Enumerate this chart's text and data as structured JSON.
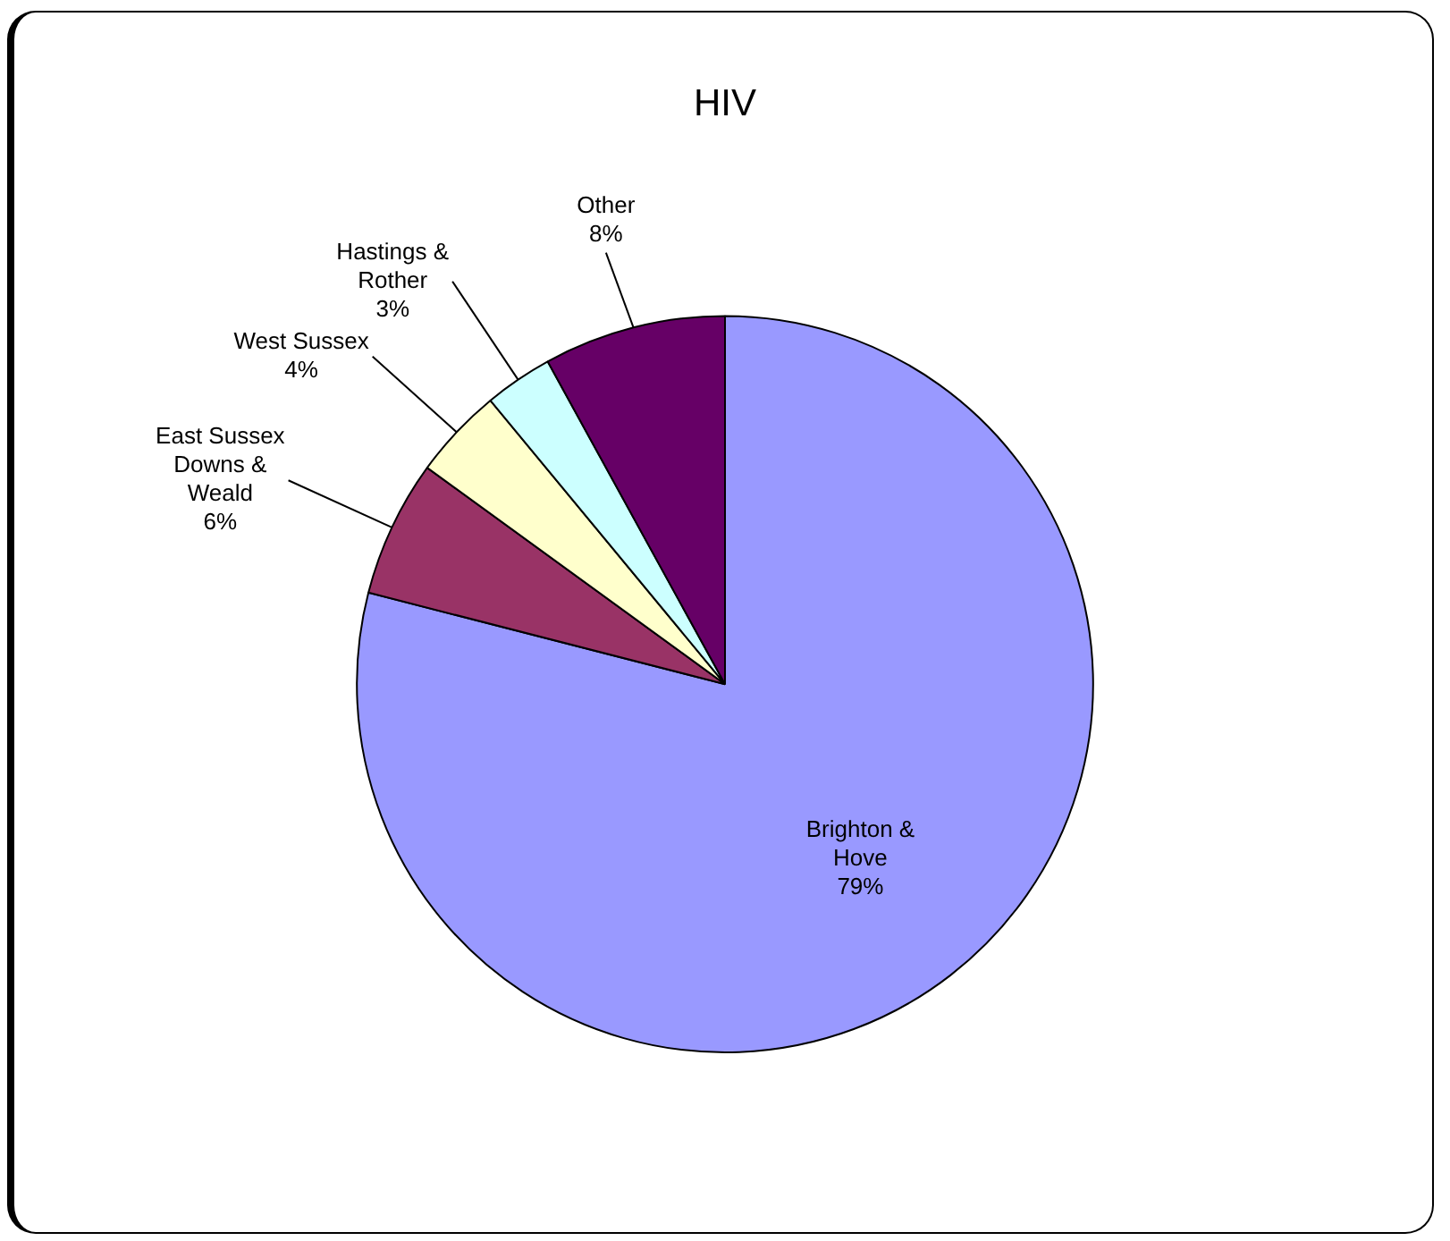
{
  "chart_data": {
    "type": "pie",
    "title": "HIV",
    "categories": [
      "Brighton & Hove",
      "East Sussex Downs & Weald",
      "West Sussex",
      "Hastings & Rother",
      "Other"
    ],
    "values": [
      79,
      6,
      4,
      3,
      8
    ],
    "value_labels": [
      "79%",
      "6%",
      "4%",
      "3%",
      "8%"
    ],
    "colors": [
      "#9999ff",
      "#993366",
      "#ffffcc",
      "#ccffff",
      "#660066"
    ],
    "legend": false
  }
}
